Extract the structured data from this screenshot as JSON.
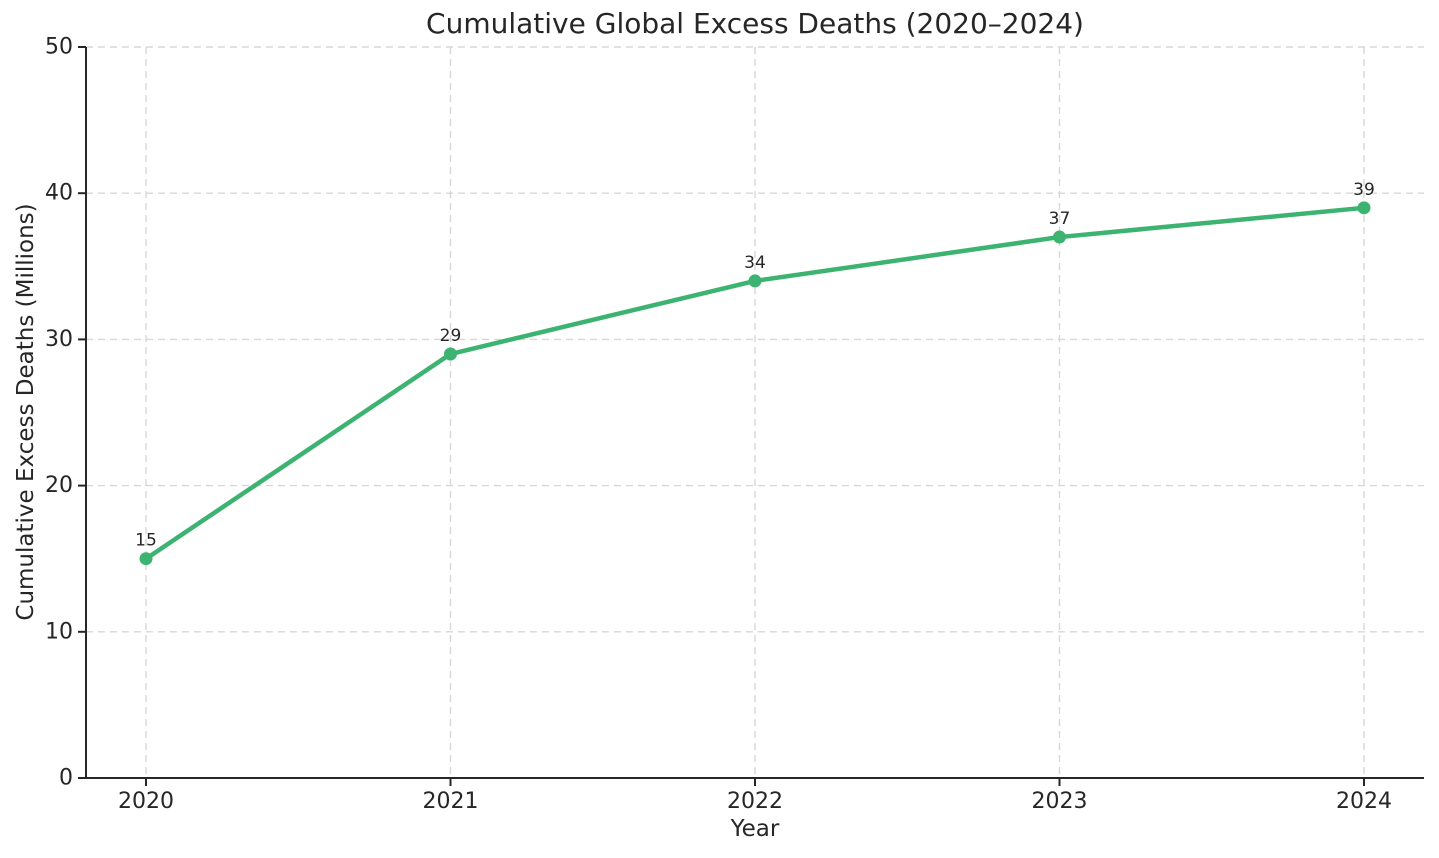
{
  "chart_data": {
    "type": "line",
    "title": "Cumulative Global Excess Deaths (2020–2024)",
    "xlabel": "Year",
    "ylabel": "Cumulative Excess Deaths (Millions)",
    "categories": [
      "2020",
      "2021",
      "2022",
      "2023",
      "2024"
    ],
    "values": [
      15,
      29,
      34,
      37,
      39
    ],
    "point_labels": [
      "15",
      "29",
      "34",
      "37",
      "39"
    ],
    "ylim": [
      0,
      50
    ],
    "yticks": [
      0,
      10,
      20,
      30,
      40,
      50
    ],
    "grid": "dashed",
    "legend": "none",
    "colors": {
      "line": "#3cb371",
      "marker": "#3cb371",
      "grid": "#d7d7d7",
      "spine": "#262626",
      "text": "#262626",
      "background": "#ffffff"
    }
  }
}
